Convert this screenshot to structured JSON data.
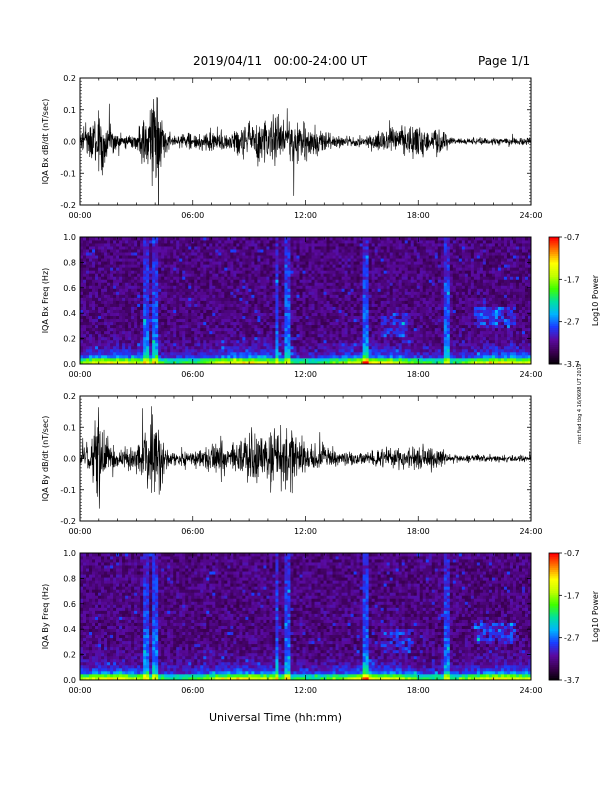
{
  "header": {
    "date_range": "2019/04/11   00:00-24:00 UT",
    "page": "Page 1/1"
  },
  "side_note": "mst fiad tbg 4 16/0698 UT 2019",
  "footer": {
    "xlabel": "Universal Time (hh:mm)"
  },
  "colors": {
    "colormap": [
      "#000000",
      "#3a0050",
      "#5a0aa0",
      "#1a3cff",
      "#00b4ff",
      "#00e0a0",
      "#40ff00",
      "#c0ff00",
      "#ffff00",
      "#ff8000",
      "#ff0000"
    ]
  },
  "chart_data": [
    {
      "type": "line",
      "title": "",
      "ylabel": "IQA Bx dB/dt (nT/sec)",
      "xlabel": "",
      "xlim": [
        "00:00",
        "24:00"
      ],
      "ylim": [
        -0.2,
        0.2
      ],
      "yticks": [
        "0.2",
        "0.1",
        "0.0",
        "-0.1",
        "-0.2"
      ],
      "xticks": [
        "00:00",
        "06:00",
        "12:00",
        "18:00",
        "24:00"
      ],
      "series": [
        {
          "x_hours": [
            0,
            0.5,
            1.0,
            1.5,
            2.0,
            2.5,
            3.0,
            3.5,
            3.9,
            4.1,
            4.5,
            5.0,
            5.5,
            6.0,
            6.5,
            7.0,
            7.5,
            8.0,
            8.5,
            9.0,
            9.5,
            10.0,
            10.5,
            11.0,
            11.5,
            12.0,
            12.5,
            13.0,
            13.5,
            14.0,
            14.5,
            15.0,
            15.5,
            16.0,
            16.5,
            17.0,
            17.5,
            18.0,
            18.5,
            19.0,
            19.5,
            20.0,
            20.5,
            21.0,
            21.5,
            22.0,
            22.5,
            23.0,
            23.5,
            24.0
          ],
          "amplitude": [
            0.05,
            0.12,
            0.2,
            0.1,
            0.04,
            0.03,
            0.05,
            0.15,
            0.25,
            0.25,
            0.09,
            0.03,
            0.04,
            0.04,
            0.05,
            0.07,
            0.06,
            0.06,
            0.08,
            0.1,
            0.12,
            0.13,
            0.14,
            0.17,
            0.12,
            0.1,
            0.08,
            0.06,
            0.04,
            0.03,
            0.03,
            0.03,
            0.04,
            0.06,
            0.06,
            0.08,
            0.1,
            0.1,
            0.06,
            0.08,
            0.04,
            0.02,
            0.02,
            0.02,
            0.02,
            0.02,
            0.02,
            0.02,
            0.02,
            0.02
          ]
        }
      ]
    },
    {
      "type": "heatmap",
      "title": "",
      "ylabel": "IQA Bx Freq (Hz)",
      "xlim": [
        "00:00",
        "24:00"
      ],
      "ylim": [
        0.0,
        1.0
      ],
      "yticks": [
        "1.0",
        "0.8",
        "0.6",
        "0.4",
        "0.2",
        "0.0"
      ],
      "xticks": [
        "00:00",
        "06:00",
        "12:00",
        "18:00",
        "24:00"
      ],
      "colorbar": {
        "label": "Log10 Power",
        "range": [
          -3.7,
          -0.7
        ],
        "ticks": [
          "-0.7",
          "-1.7",
          "-2.7",
          "-3.7"
        ]
      }
    },
    {
      "type": "line",
      "title": "",
      "ylabel": "IQA By dB/dt (nT/sec)",
      "xlim": [
        "00:00",
        "24:00"
      ],
      "ylim": [
        -0.2,
        0.2
      ],
      "yticks": [
        "0.2",
        "0.1",
        "0.0",
        "-0.1",
        "-0.2"
      ],
      "xticks": [
        "00:00",
        "06:00",
        "12:00",
        "18:00",
        "24:00"
      ],
      "series": [
        {
          "x_hours": [
            0,
            0.5,
            1.0,
            1.5,
            2.0,
            2.5,
            3.0,
            3.5,
            3.9,
            4.1,
            4.5,
            5.0,
            5.5,
            6.0,
            6.5,
            7.0,
            7.5,
            8.0,
            8.5,
            9.0,
            9.5,
            10.0,
            10.5,
            11.0,
            11.5,
            12.0,
            12.5,
            13.0,
            13.5,
            14.0,
            14.5,
            15.0,
            15.5,
            16.0,
            16.5,
            17.0,
            17.5,
            18.0,
            18.5,
            19.0,
            19.5,
            20.0,
            20.5,
            21.0,
            21.5,
            22.0,
            22.5,
            23.0,
            23.5,
            24.0
          ],
          "amplitude": [
            0.04,
            0.1,
            0.25,
            0.12,
            0.05,
            0.05,
            0.07,
            0.18,
            0.25,
            0.25,
            0.08,
            0.04,
            0.06,
            0.05,
            0.06,
            0.09,
            0.12,
            0.07,
            0.1,
            0.13,
            0.15,
            0.14,
            0.18,
            0.2,
            0.14,
            0.1,
            0.08,
            0.07,
            0.05,
            0.04,
            0.04,
            0.04,
            0.04,
            0.05,
            0.06,
            0.07,
            0.08,
            0.08,
            0.06,
            0.07,
            0.03,
            0.02,
            0.02,
            0.02,
            0.02,
            0.02,
            0.02,
            0.02,
            0.02,
            0.02
          ]
        }
      ]
    },
    {
      "type": "heatmap",
      "title": "",
      "ylabel": "IQA By Freq (Hz)",
      "xlim": [
        "00:00",
        "24:00"
      ],
      "ylim": [
        0.0,
        1.0
      ],
      "yticks": [
        "1.0",
        "0.8",
        "0.6",
        "0.4",
        "0.2",
        "0.0"
      ],
      "xticks": [
        "00:00",
        "06:00",
        "12:00",
        "18:00",
        "24:00"
      ],
      "colorbar": {
        "label": "Log10 Power",
        "range": [
          -3.7,
          -0.7
        ],
        "ticks": [
          "-0.7",
          "-1.7",
          "-2.7",
          "-3.7"
        ]
      }
    }
  ]
}
